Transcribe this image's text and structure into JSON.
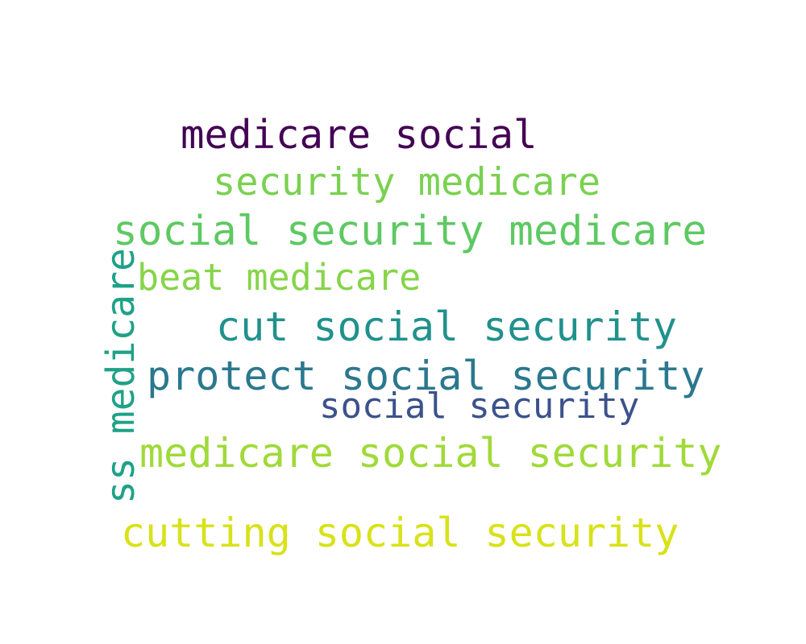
{
  "background": "#ffffff",
  "phrases": [
    {
      "text": "medicare social",
      "color": "#440154"
    },
    {
      "text": "security medicare",
      "color": "#7ad151"
    },
    {
      "text": "social security medicare",
      "color": "#5ec962"
    },
    {
      "text": "beat medicare",
      "color": "#86d549"
    },
    {
      "text": "cut social security",
      "color": "#21918c"
    },
    {
      "text": "protect social security",
      "color": "#2a788e"
    },
    {
      "text": "social security",
      "color": "#3b528b"
    },
    {
      "text": "medicare social security",
      "color": "#a0da39"
    },
    {
      "text": "cutting social security",
      "color": "#d8e219"
    },
    {
      "text": "ss medicare",
      "color": "#1fa187"
    }
  ]
}
